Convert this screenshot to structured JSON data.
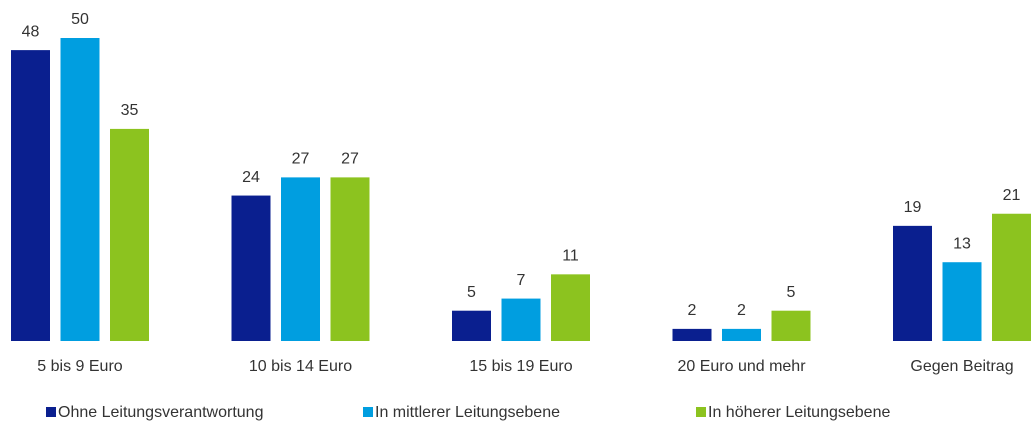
{
  "chart_data": {
    "type": "bar",
    "categories": [
      "5 bis 9 Euro",
      "10 bis 14 Euro",
      "15 bis 19 Euro",
      "20 Euro und mehr",
      "Gegen Beitrag"
    ],
    "series": [
      {
        "name": "Ohne Leitungsverantwortung",
        "color": "#0a1f8f",
        "values": [
          48,
          24,
          5,
          2,
          19
        ]
      },
      {
        "name": "In mittlerer Leitungsebene",
        "color": "#009ee0",
        "values": [
          50,
          27,
          7,
          2,
          13
        ]
      },
      {
        "name": "In höherer Leitungsebene",
        "color": "#8cc31f",
        "values": [
          35,
          27,
          11,
          5,
          21
        ]
      }
    ],
    "ylim": [
      0,
      50
    ]
  }
}
